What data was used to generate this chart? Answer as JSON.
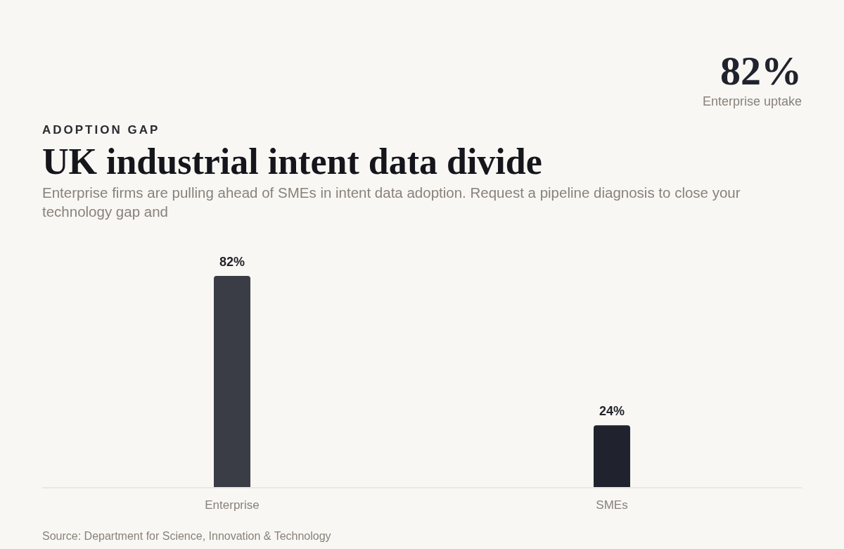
{
  "chart_data": {
    "type": "bar",
    "title": "UK industrial intent data divide",
    "subtitle": "Enterprise firms are pulling ahead of SMEs in intent data adoption. Request a pipeline diagnosis to close your technology gap and",
    "categories": [
      "Enterprise",
      "SMEs"
    ],
    "values": [
      82,
      24
    ],
    "colors": [
      "#3a3c46",
      "#20232e"
    ],
    "value_labels": [
      "82%",
      "24%"
    ],
    "annotations": [
      "ADOPTION GAP",
      "82%",
      "Enterprise uptake",
      "Source: Department for Science, Innovation & Technology"
    ]
  }
}
